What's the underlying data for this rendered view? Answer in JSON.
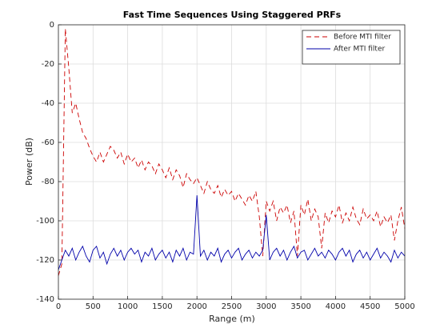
{
  "chart_data": {
    "type": "line",
    "title": "Fast Time Sequences Using Staggered PRFs",
    "xlabel": "Range (m)",
    "ylabel": "Power (dB)",
    "x": [
      0,
      50,
      100,
      150,
      200,
      250,
      300,
      350,
      400,
      450,
      500,
      550,
      600,
      650,
      700,
      750,
      800,
      850,
      900,
      950,
      1000,
      1050,
      1100,
      1150,
      1200,
      1250,
      1300,
      1350,
      1400,
      1450,
      1500,
      1550,
      1600,
      1650,
      1700,
      1750,
      1800,
      1850,
      1900,
      1950,
      2000,
      2050,
      2100,
      2150,
      2200,
      2250,
      2300,
      2350,
      2400,
      2450,
      2500,
      2550,
      2600,
      2650,
      2700,
      2750,
      2800,
      2850,
      2900,
      2950,
      3000,
      3050,
      3100,
      3150,
      3200,
      3250,
      3300,
      3350,
      3400,
      3450,
      3500,
      3550,
      3600,
      3650,
      3700,
      3750,
      3800,
      3850,
      3900,
      3950,
      4000,
      4050,
      4100,
      4150,
      4200,
      4250,
      4300,
      4350,
      4400,
      4450,
      4500,
      4550,
      4600,
      4650,
      4700,
      4750,
      4800,
      4850,
      4900,
      4950,
      5000
    ],
    "series": [
      {
        "name": "Before MTI filter",
        "color": "#cc0000",
        "linestyle": "--",
        "values": [
          -128,
          -122,
          -2,
          -22,
          -45,
          -40,
          -48,
          -55,
          -58,
          -63,
          -67,
          -70,
          -65,
          -70,
          -66,
          -62,
          -64,
          -68,
          -65,
          -71,
          -66,
          -70,
          -68,
          -73,
          -69,
          -74,
          -70,
          -72,
          -76,
          -71,
          -74,
          -78,
          -73,
          -79,
          -74,
          -77,
          -83,
          -76,
          -79,
          -81,
          -78,
          -82,
          -86,
          -80,
          -84,
          -86,
          -82,
          -88,
          -84,
          -87,
          -85,
          -90,
          -86,
          -89,
          -92,
          -87,
          -90,
          -85,
          -98,
          -118,
          -90,
          -95,
          -90,
          -100,
          -93,
          -96,
          -92,
          -101,
          -95,
          -118,
          -92,
          -97,
          -89,
          -100,
          -94,
          -98,
          -114,
          -96,
          -101,
          -95,
          -98,
          -92,
          -101,
          -96,
          -100,
          -93,
          -99,
          -102,
          -94,
          -99,
          -97,
          -100,
          -95,
          -103,
          -98,
          -101,
          -97,
          -110,
          -100,
          -93,
          -104
        ]
      },
      {
        "name": "After MTI filter",
        "color": "#0000aa",
        "linestyle": "-",
        "values": [
          -125,
          -120,
          -115,
          -118,
          -114,
          -120,
          -116,
          -113,
          -118,
          -121,
          -115,
          -113,
          -119,
          -116,
          -122,
          -117,
          -114,
          -118,
          -115,
          -120,
          -116,
          -114,
          -117,
          -115,
          -121,
          -116,
          -118,
          -114,
          -120,
          -117,
          -115,
          -119,
          -116,
          -121,
          -115,
          -118,
          -114,
          -120,
          -116,
          -117,
          -87,
          -118,
          -115,
          -120,
          -116,
          -118,
          -114,
          -121,
          -117,
          -115,
          -119,
          -116,
          -114,
          -120,
          -117,
          -115,
          -119,
          -116,
          -118,
          -115,
          -97,
          -120,
          -116,
          -114,
          -118,
          -115,
          -120,
          -116,
          -113,
          -119,
          -116,
          -115,
          -120,
          -117,
          -114,
          -118,
          -116,
          -119,
          -115,
          -117,
          -120,
          -116,
          -114,
          -118,
          -115,
          -121,
          -117,
          -115,
          -119,
          -116,
          -120,
          -117,
          -114,
          -119,
          -116,
          -118,
          -121,
          -115,
          -119,
          -116,
          -118
        ]
      }
    ],
    "xlim": [
      0,
      5000
    ],
    "xticks": [
      0,
      500,
      1000,
      1500,
      2000,
      2500,
      3000,
      3500,
      4000,
      4500,
      5000
    ],
    "ylim": [
      -140,
      0
    ],
    "yticks": [
      -140,
      -120,
      -100,
      -80,
      -60,
      -40,
      -20,
      0
    ],
    "grid": true,
    "legend": "northeast"
  }
}
